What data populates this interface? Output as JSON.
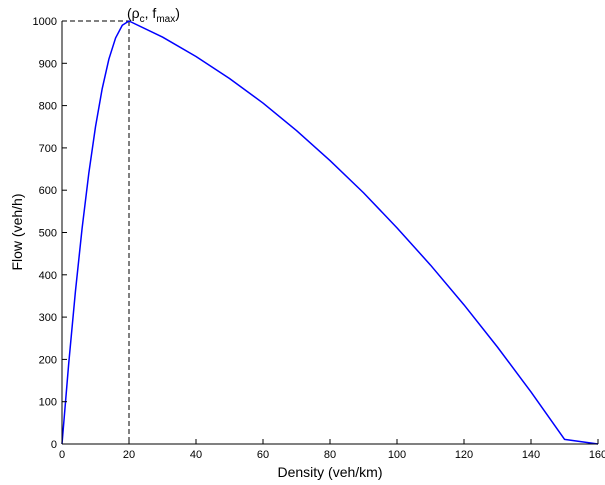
{
  "chart_data": {
    "type": "line",
    "xlabel": "Density (veh/km)",
    "ylabel": "Flow (veh/h)",
    "xlim": [
      0,
      160
    ],
    "ylim": [
      0,
      1000
    ],
    "x_ticks": [
      0,
      20,
      40,
      60,
      80,
      100,
      120,
      140,
      160
    ],
    "y_ticks": [
      0,
      100,
      200,
      300,
      400,
      500,
      600,
      700,
      800,
      900,
      1000
    ],
    "x_tick_labels": [
      "0",
      "20",
      "40",
      "60",
      "80",
      "100",
      "120",
      "140",
      "160"
    ],
    "y_tick_labels": [
      "0",
      "100",
      "200",
      "300",
      "400",
      "500",
      "600",
      "700",
      "800",
      "900",
      "1000"
    ],
    "grid": false,
    "series": [
      {
        "color": "#0000ff",
        "x": [
          0,
          2,
          4,
          6,
          8,
          10,
          12,
          14,
          16,
          18,
          20,
          30,
          40,
          50,
          60,
          70,
          80,
          90,
          100,
          110,
          120,
          130,
          140,
          150,
          160
        ],
        "y": [
          0,
          190,
          360,
          510,
          640,
          750,
          840,
          910,
          960,
          990,
          1000,
          962,
          916,
          864,
          806,
          741,
          670,
          594,
          511,
          423,
          329,
          229,
          123,
          11,
          0
        ]
      }
    ],
    "critical_point": {
      "x": 20,
      "y": 1000
    },
    "annotation": {
      "open": "(ρ",
      "sub1": "c",
      "mid": ", f",
      "sub2": "max",
      "close": ")"
    }
  }
}
